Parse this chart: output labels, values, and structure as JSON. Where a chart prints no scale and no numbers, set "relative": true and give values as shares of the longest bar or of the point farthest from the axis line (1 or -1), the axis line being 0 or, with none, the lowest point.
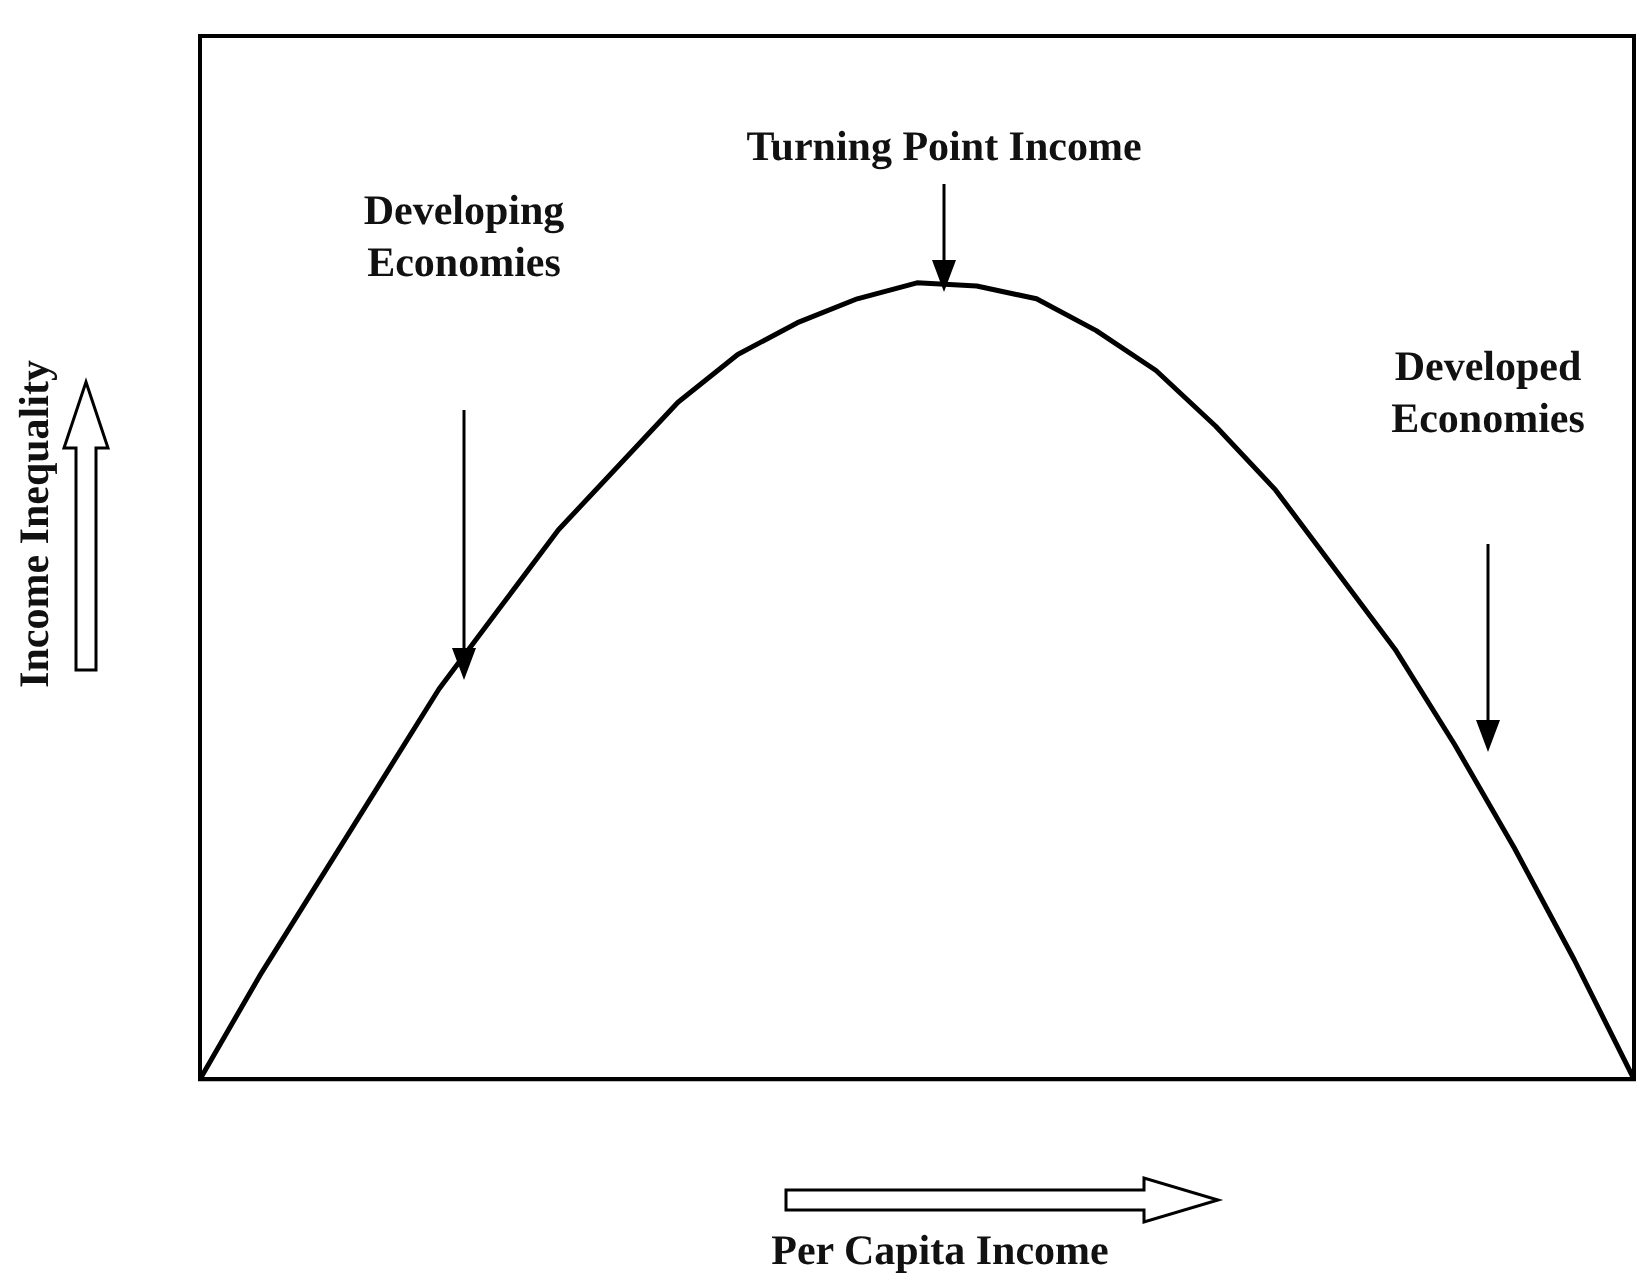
{
  "chart_data": {
    "type": "line",
    "relative": true,
    "xlabel": "Per Capita Income",
    "ylabel": "Income Inequality",
    "categories": [
      null,
      null,
      null,
      null,
      null,
      null,
      null,
      null,
      null,
      null,
      null,
      null,
      null,
      null,
      null,
      null,
      null,
      null,
      null,
      null,
      null,
      null,
      null,
      null,
      null
    ],
    "series": [
      {
        "color": "#000000",
        "values": [
          0,
          0.13,
          0.25,
          0.37,
          0.49,
          0.59,
          0.69,
          0.77,
          0.85,
          0.91,
          0.95,
          0.98,
          1,
          0.996,
          0.98,
          0.94,
          0.89,
          0.82,
          0.74,
          0.64,
          0.54,
          0.42,
          0.29,
          0.15,
          0
        ]
      }
    ],
    "marker": "none",
    "line_style": "solid",
    "legend": false,
    "grid": false,
    "annotations": [
      "Turning Point Income",
      "Developing Economies",
      "Developed Economies"
    ]
  }
}
